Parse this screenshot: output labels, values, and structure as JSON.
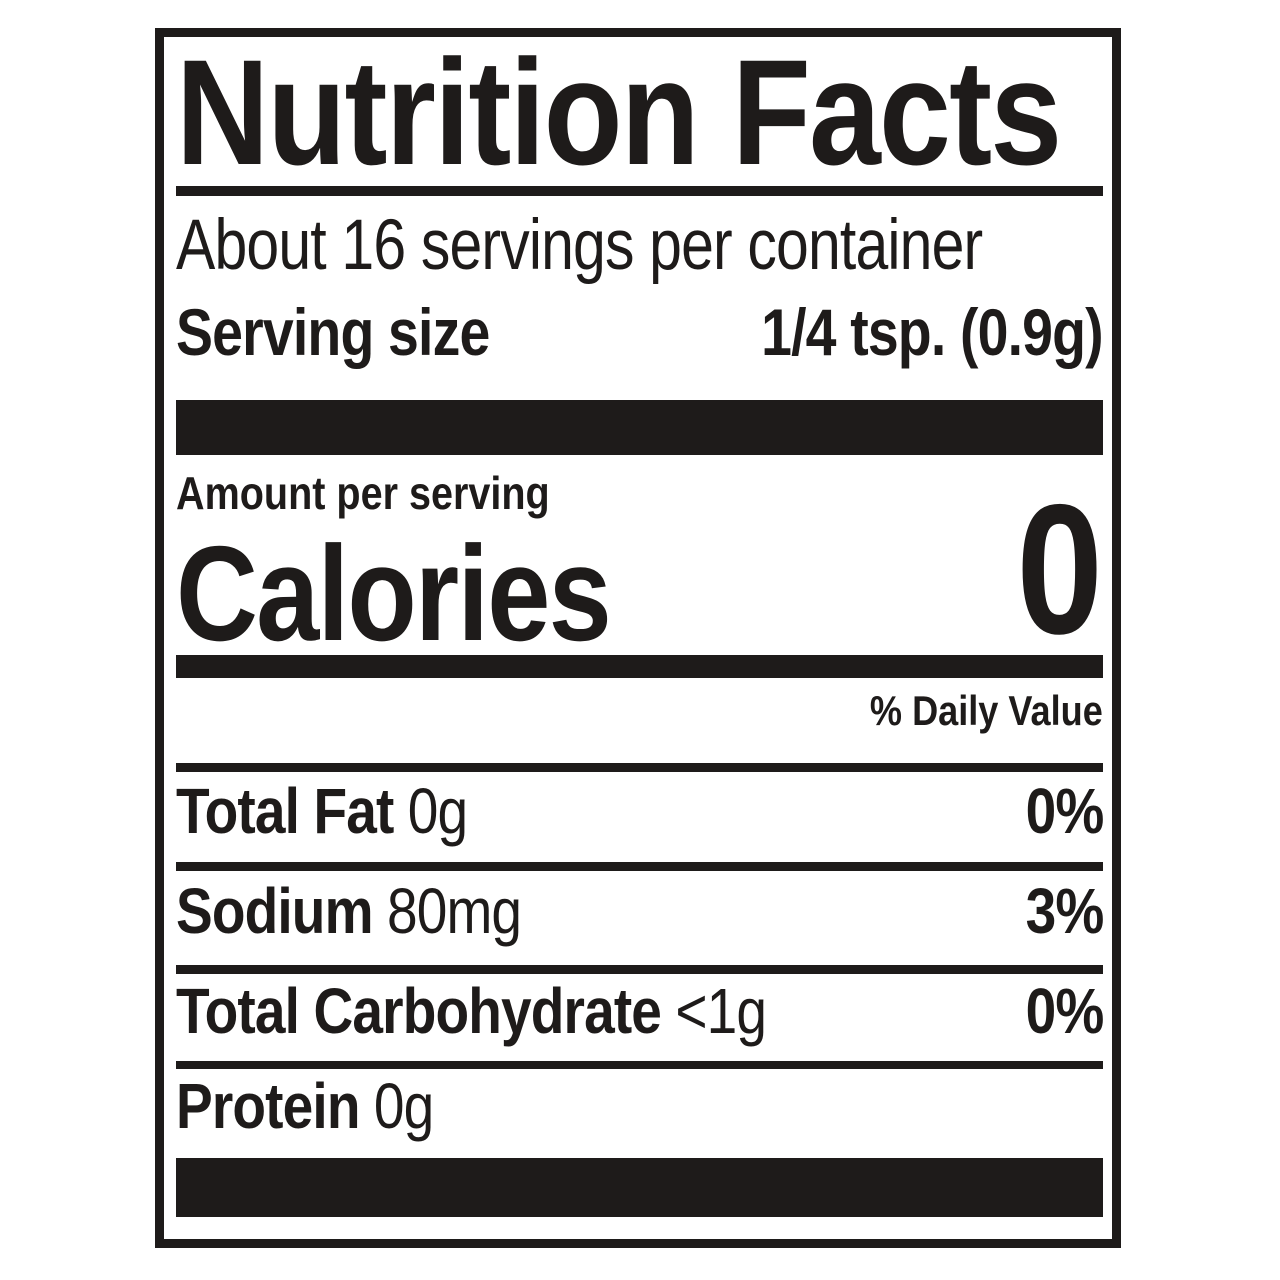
{
  "label": {
    "title": "Nutrition Facts",
    "servings_per_container": "About 16 servings per container",
    "serving_size_label": "Serving size",
    "serving_size_value": "1/4 tsp. (0.9g)",
    "amount_per_serving_label": "Amount per serving",
    "calories_label": "Calories",
    "calories_value": "0",
    "daily_value_header": "% Daily Value",
    "nutrients": [
      {
        "name": "Total Fat",
        "amount": "0g",
        "daily_value": "0%"
      },
      {
        "name": "Sodium",
        "amount": "80mg",
        "daily_value": "3%"
      },
      {
        "name": "Total Carbohydrate",
        "amount": "<1g",
        "daily_value": "0%"
      },
      {
        "name": "Protein",
        "amount": "0g",
        "daily_value": ""
      }
    ],
    "ink_color": "#1e1b1a",
    "background_color": "#ffffff"
  }
}
